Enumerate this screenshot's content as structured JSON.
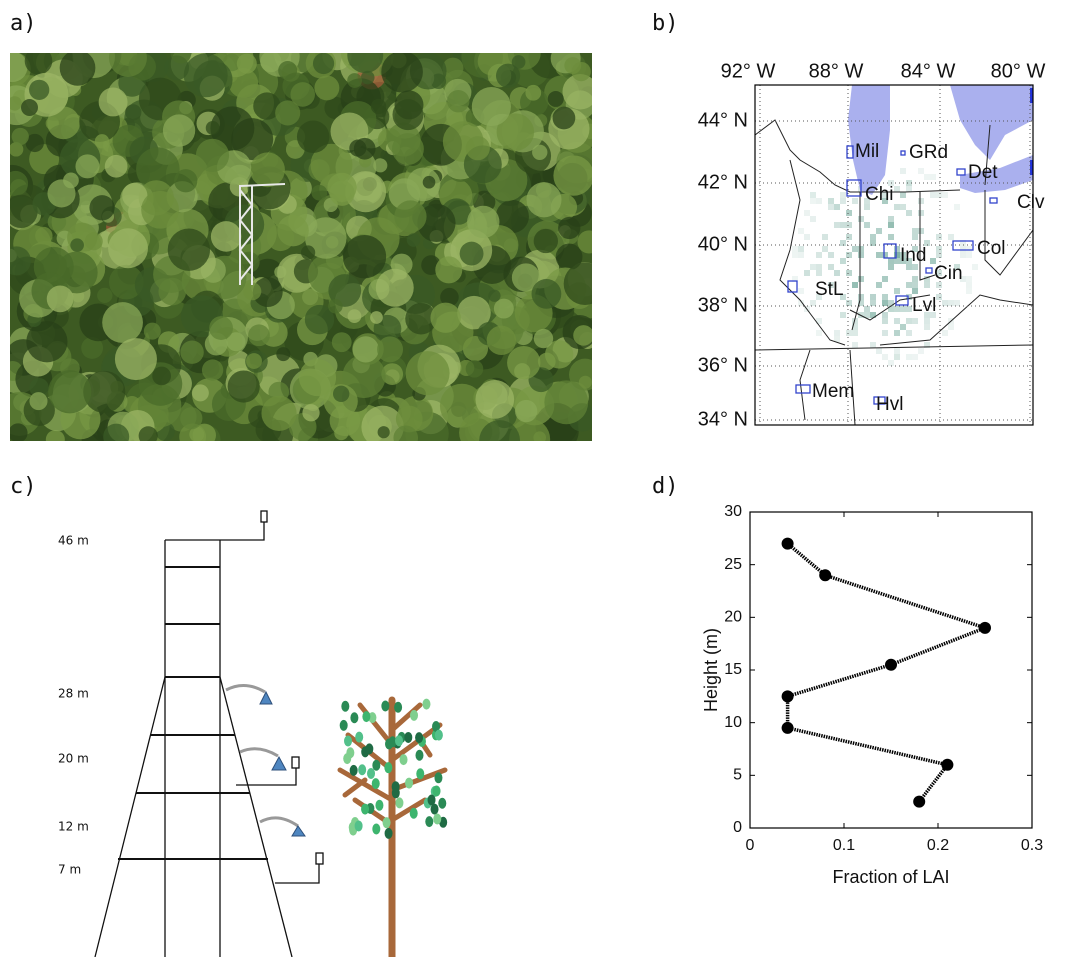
{
  "panels": {
    "a": "a)",
    "b": "b)",
    "c": "c)",
    "d": "d)"
  },
  "map": {
    "lon_labels": [
      "92° W",
      "88° W",
      "84° W",
      "80° W"
    ],
    "lat_labels": [
      "44° N",
      "42° N",
      "40° N",
      "38° N",
      "36° N",
      "34° N"
    ],
    "cities": [
      "Mil",
      "GRd",
      "Det",
      "Chi",
      "Clv",
      "Col",
      "Ind",
      "Cin",
      "StL",
      "Lvl",
      "Mem",
      "Hvl"
    ]
  },
  "tower": {
    "heights": [
      "46 m",
      "28 m",
      "20 m",
      "12 m",
      "7 m"
    ]
  },
  "chart_data": {
    "type": "line",
    "xlabel": "Fraction of LAI",
    "ylabel": "Height (m)",
    "x": [
      0.04,
      0.08,
      0.25,
      0.15,
      0.04,
      0.04,
      0.21,
      0.18
    ],
    "values": [
      27,
      24,
      19,
      15.5,
      12.5,
      9.5,
      6,
      2.5
    ],
    "color": "#000000",
    "xlim": [
      0,
      0.3
    ],
    "xticks": [
      0,
      0.1,
      0.2,
      0.3
    ],
    "ylim": [
      0,
      30
    ],
    "yticks": [
      0,
      5,
      10,
      15,
      20,
      25,
      30
    ]
  }
}
